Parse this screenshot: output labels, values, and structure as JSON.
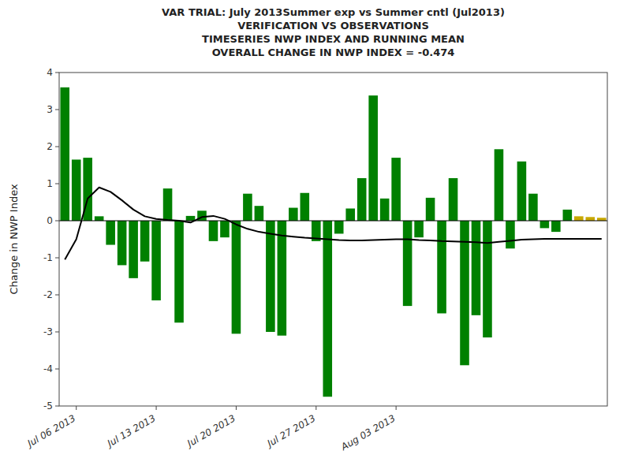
{
  "chart_data": {
    "type": "bar",
    "title": "VAR TRIAL: July 2013Summer exp vs Summer cntl (Jul2013)\nVERIFICATION VS OBSERVATIONS\nTIMESERIES NWP INDEX AND RUNNING MEAN\nOVERALL CHANGE IN NWP INDEX = -0.474",
    "y_label": "Change in NWP Index",
    "categories": [
      null,
      "Jul 06 2013",
      null,
      null,
      null,
      null,
      null,
      null,
      "Jul 13 2013",
      null,
      null,
      null,
      null,
      null,
      null,
      "Jul 20 2013",
      null,
      null,
      null,
      null,
      null,
      null,
      "Jul 27 2013",
      null,
      null,
      null,
      null,
      null,
      null,
      "Aug 03 2013",
      null,
      null,
      null,
      null,
      null,
      null,
      null,
      null,
      null,
      null,
      null,
      null,
      null,
      null,
      null,
      null,
      null,
      null
    ],
    "series": [
      {
        "type": "bar",
        "values": [
          3.6,
          1.65,
          1.7,
          0.12,
          -0.65,
          -1.2,
          -1.55,
          -1.1,
          -2.15,
          0.87,
          -2.75,
          0.13,
          0.27,
          -0.55,
          -0.45,
          -3.05,
          0.73,
          0.4,
          -3.0,
          -3.1,
          0.35,
          0.75,
          -0.55,
          -4.75,
          -0.35,
          0.33,
          1.15,
          3.38,
          0.6,
          1.7,
          -2.3,
          -0.45,
          0.62,
          -2.5,
          1.15,
          -3.9,
          -2.55,
          -3.15,
          1.93,
          -0.75,
          1.6,
          0.73,
          -0.2,
          -0.3,
          0.3,
          0.12,
          0.1,
          0.08
        ],
        "colors": [
          "#008000",
          "#008000",
          "#008000",
          "#008000",
          "#008000",
          "#008000",
          "#008000",
          "#008000",
          "#008000",
          "#008000",
          "#008000",
          "#008000",
          "#008000",
          "#008000",
          "#008000",
          "#008000",
          "#008000",
          "#008000",
          "#008000",
          "#008000",
          "#008000",
          "#008000",
          "#008000",
          "#008000",
          "#008000",
          "#008000",
          "#008000",
          "#008000",
          "#008000",
          "#008000",
          "#008000",
          "#008000",
          "#008000",
          "#008000",
          "#008000",
          "#008000",
          "#008000",
          "#008000",
          "#008000",
          "#008000",
          "#008000",
          "#008000",
          "#008000",
          "#008000",
          "#008000",
          "#C8A800",
          "#C8A800",
          "#C8A800"
        ]
      },
      {
        "type": "line",
        "color": "#000000",
        "values": [
          -1.05,
          -0.5,
          0.6,
          0.9,
          0.78,
          0.55,
          0.3,
          0.12,
          0.05,
          0.02,
          0.0,
          -0.05,
          0.1,
          0.13,
          0.05,
          -0.1,
          -0.22,
          -0.3,
          -0.35,
          -0.4,
          -0.43,
          -0.46,
          -0.48,
          -0.5,
          -0.52,
          -0.53,
          -0.53,
          -0.52,
          -0.51,
          -0.5,
          -0.5,
          -0.52,
          -0.53,
          -0.55,
          -0.56,
          -0.57,
          -0.58,
          -0.6,
          -0.57,
          -0.54,
          -0.51,
          -0.5,
          -0.49,
          -0.49,
          -0.49,
          -0.49,
          -0.49,
          -0.49
        ]
      }
    ],
    "ylim": [
      -5,
      4
    ],
    "yticks": [
      -5,
      -4,
      -3,
      -2,
      -1,
      0,
      1,
      2,
      3,
      4
    ],
    "grid": false
  }
}
